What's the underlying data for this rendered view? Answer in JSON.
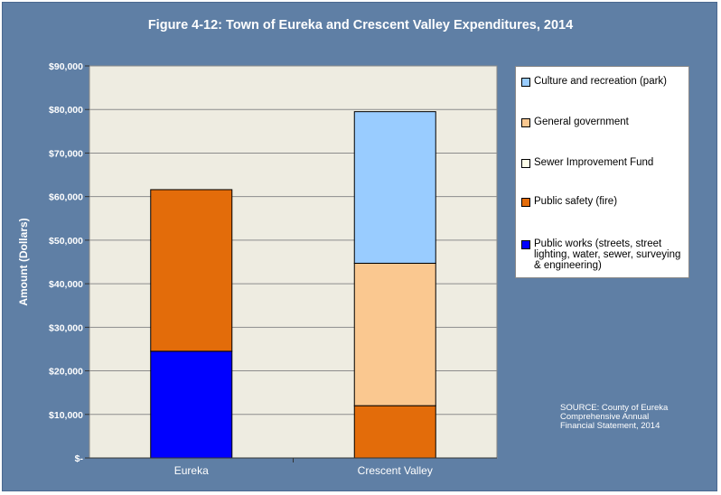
{
  "chart_data": {
    "type": "bar",
    "stacked": true,
    "title": "Figure 4-12: Town of Eureka and Crescent Valley Expenditures, 2014",
    "ylabel": "Amount (Dollars)",
    "xlabel": "",
    "ylim": [
      0,
      90000
    ],
    "yticks": [
      0,
      10000,
      20000,
      30000,
      40000,
      50000,
      60000,
      70000,
      80000,
      90000
    ],
    "ytick_labels": [
      "$-",
      "$10,000",
      "$20,000",
      "$30,000",
      "$40,000",
      "$50,000",
      "$60,000",
      "$70,000",
      "$80,000",
      "$90,000"
    ],
    "grid": true,
    "legend_placement": "right",
    "categories": [
      "Eureka",
      "Crescent Valley"
    ],
    "series": [
      {
        "name": "Public works (streets, street lighting, water, sewer, surveying & engineering)",
        "color": "#0000ff",
        "values": [
          24500,
          0
        ]
      },
      {
        "name": "Public safety (fire)",
        "color": "#e36c0a",
        "values": [
          37100,
          12000
        ]
      },
      {
        "name": "Sewer Improvement Fund",
        "color": "#fdfde8",
        "values": [
          0,
          0
        ]
      },
      {
        "name": "General government",
        "color": "#fac890",
        "values": [
          0,
          32700
        ]
      },
      {
        "name": "Culture and recreation (park)",
        "color": "#99ccff",
        "values": [
          0,
          34800
        ]
      }
    ],
    "source_note": "SOURCE: County of Eureka Comprehensive Annual Financial Statement, 2014"
  }
}
